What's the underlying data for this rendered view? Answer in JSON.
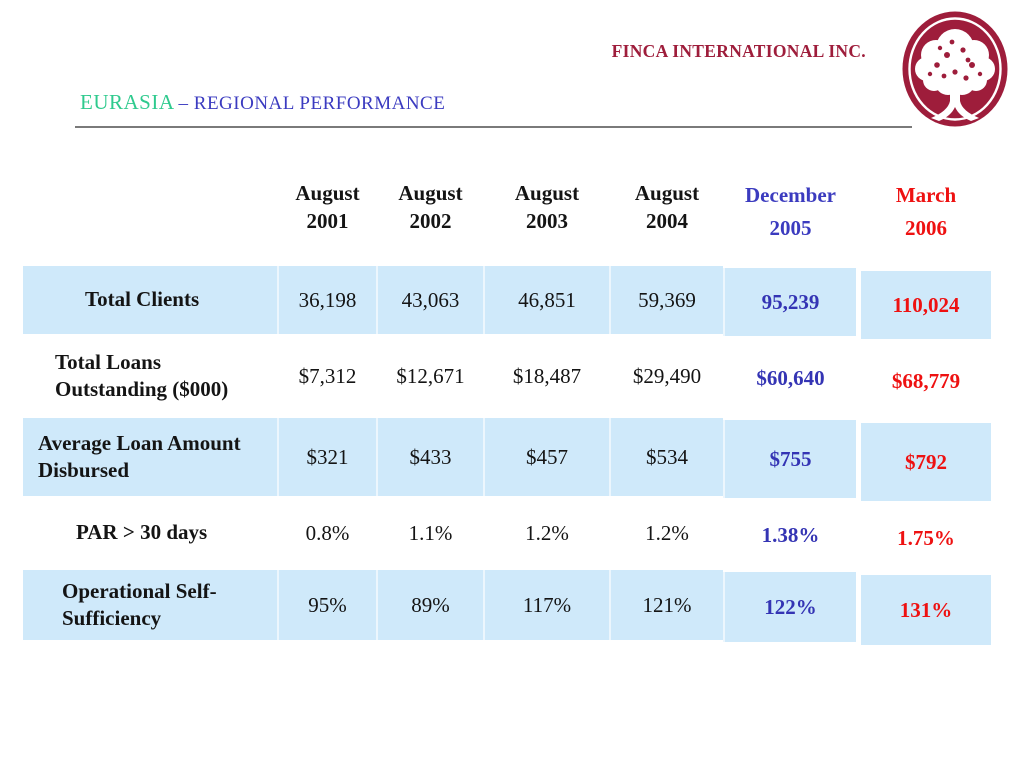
{
  "header": {
    "company": "FINCA INTERNATIONAL INC.",
    "title_region": "EURASIA",
    "title_rest": "– REGIONAL PERFORMANCE"
  },
  "logo": {
    "icon": "finca-tree-logo"
  },
  "table": {
    "columns": [
      {
        "line1": "August",
        "line2": "2001",
        "color_key": "header_black"
      },
      {
        "line1": "August",
        "line2": "2002",
        "color_key": "header_black"
      },
      {
        "line1": "August",
        "line2": "2003",
        "color_key": "header_black"
      },
      {
        "line1": "August",
        "line2": "2004",
        "color_key": "header_black"
      },
      {
        "line1": "December",
        "line2": "2005",
        "color_key": "header_blue"
      },
      {
        "line1": "March",
        "line2": "2006",
        "color_key": "header_red"
      }
    ],
    "rows": [
      {
        "label": "Total Clients",
        "values": [
          "36,198",
          "43,063",
          "46,851",
          "59,369",
          "95,239",
          "110,024"
        ]
      },
      {
        "label": "Total Loans Outstanding ($000)",
        "values": [
          "$7,312",
          "$12,671",
          "$18,487",
          "$29,490",
          "$60,640",
          "$68,779"
        ]
      },
      {
        "label": "Average Loan Amount Disbursed",
        "values": [
          "$321",
          "$433",
          "$457",
          "$534",
          "$755",
          "$792"
        ]
      },
      {
        "label": "PAR > 30 days",
        "values": [
          "0.8%",
          "1.1%",
          "1.2%",
          "1.2%",
          "1.38%",
          "1.75%"
        ]
      },
      {
        "label": "Operational Self-Sufficiency",
        "values": [
          "95%",
          "89%",
          "117%",
          "121%",
          "122%",
          "131%"
        ]
      }
    ]
  },
  "colors": {
    "maroon": "#9e1d3b",
    "title_green": "#2fca8e",
    "title_blue": "#3b3bc0",
    "rule_gray": "#7a7a7a",
    "row_stripe": "#cfe9fa",
    "header_black": "#141414",
    "header_blue": "#3b3bbf",
    "header_red": "#ee1111",
    "value_blue": "#3434b4",
    "value_red": "#ee1111"
  }
}
